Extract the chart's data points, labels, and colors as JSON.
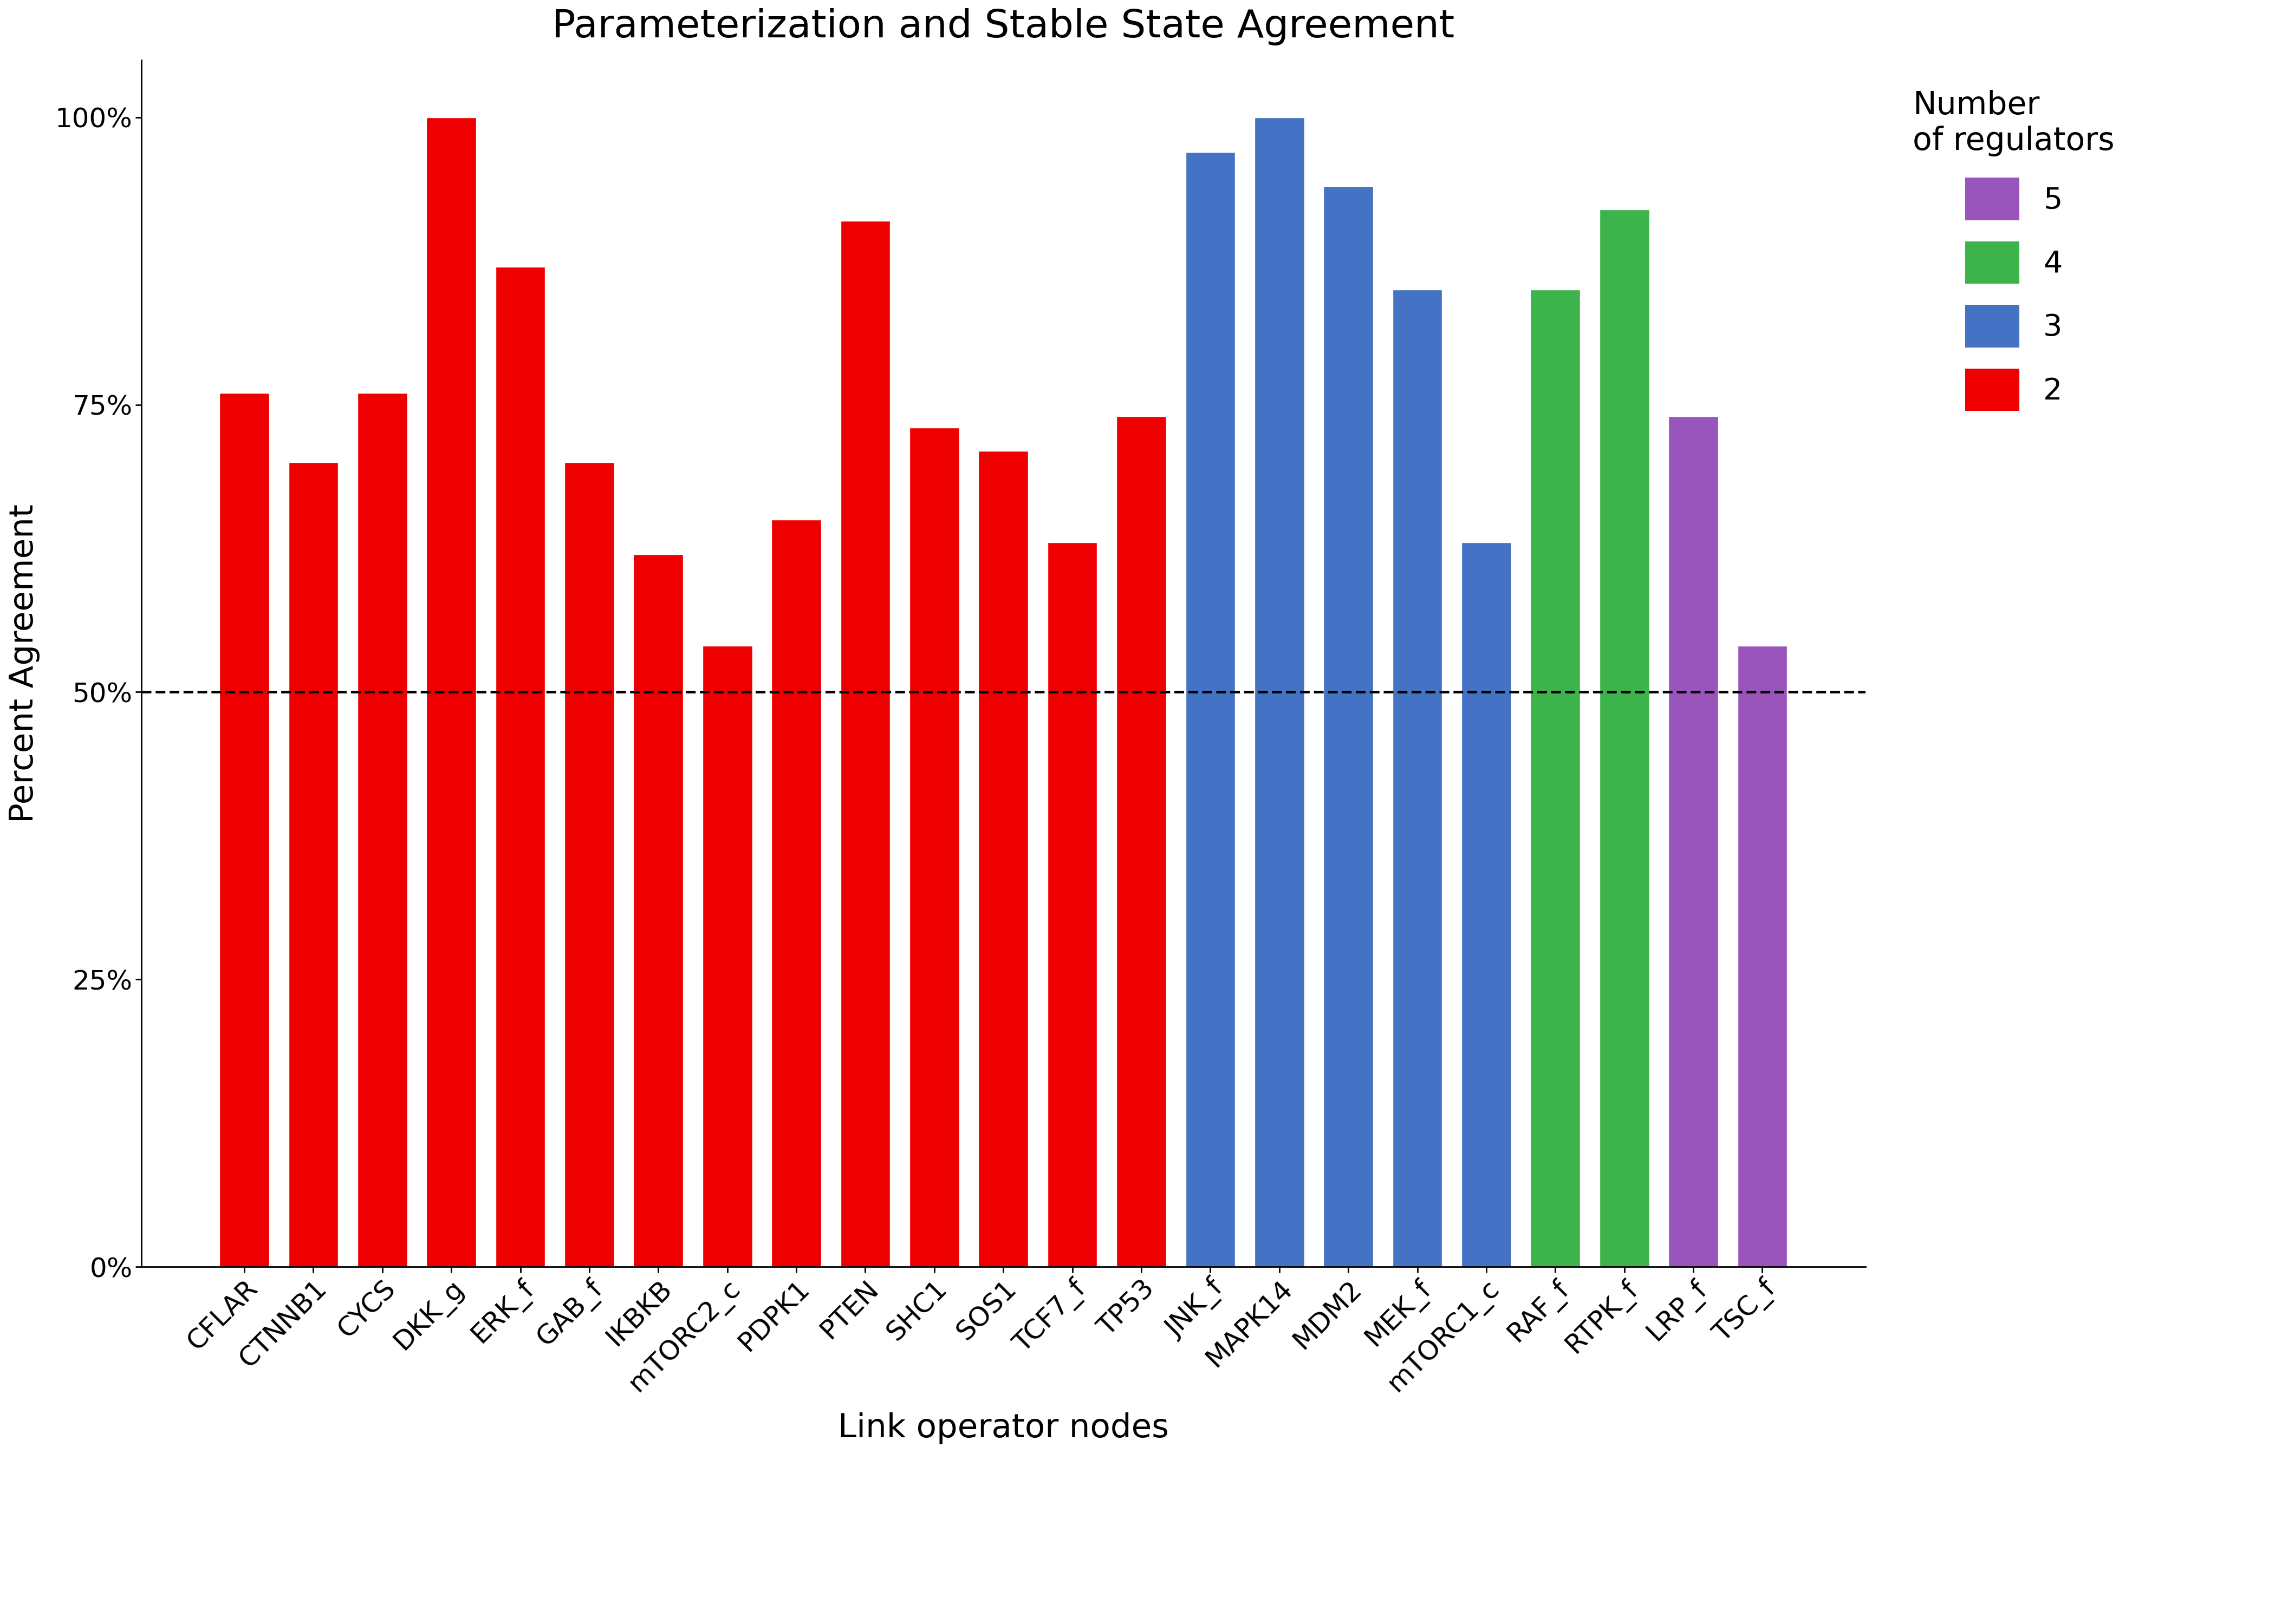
{
  "title": "Parameterization and Stable State Agreement",
  "xlabel": "Link operator nodes",
  "ylabel": "Percent Agreement",
  "categories": [
    "CFLAR",
    "CTNNB1",
    "CYCS",
    "DKK_g",
    "ERK_f",
    "GAB_f",
    "IKBKB",
    "mTORC2_c",
    "PDPK1",
    "PTEN",
    "SHC1",
    "SOS1",
    "TCF7_f",
    "TP53",
    "JNK_f",
    "MAPK14",
    "MDM2",
    "MEK_f",
    "mTORC1_c",
    "RAF_f",
    "RTPK_f",
    "LRP_f",
    "TSC_f"
  ],
  "values": [
    0.76,
    0.7,
    0.76,
    1.0,
    0.87,
    0.7,
    0.62,
    0.54,
    0.65,
    0.91,
    0.73,
    0.71,
    0.63,
    0.74,
    0.97,
    1.0,
    0.94,
    0.85,
    0.63,
    0.85,
    0.92,
    0.74,
    0.54
  ],
  "colors": [
    "#EE0000",
    "#EE0000",
    "#EE0000",
    "#EE0000",
    "#EE0000",
    "#EE0000",
    "#EE0000",
    "#EE0000",
    "#EE0000",
    "#EE0000",
    "#EE0000",
    "#EE0000",
    "#EE0000",
    "#EE0000",
    "#4472C4",
    "#4472C4",
    "#4472C4",
    "#4472C4",
    "#4472C4",
    "#3CB44B",
    "#3CB44B",
    "#9955BB",
    "#9955BB"
  ],
  "legend_labels": [
    "5",
    "4",
    "3",
    "2"
  ],
  "legend_colors": [
    "#9955BB",
    "#3CB44B",
    "#4472C4",
    "#EE0000"
  ],
  "legend_title_line1": "Number",
  "legend_title_line2": "of regulators",
  "yticks": [
    0.0,
    0.25,
    0.5,
    0.75,
    1.0
  ],
  "yticklabels": [
    "0%",
    "25%",
    "50%",
    "75%",
    "100%"
  ],
  "dashed_line_y": 0.5,
  "background_color": "#FFFFFF",
  "title_fontsize": 52,
  "axis_label_fontsize": 44,
  "tick_fontsize": 36,
  "legend_fontsize": 40,
  "legend_title_fontsize": 42
}
